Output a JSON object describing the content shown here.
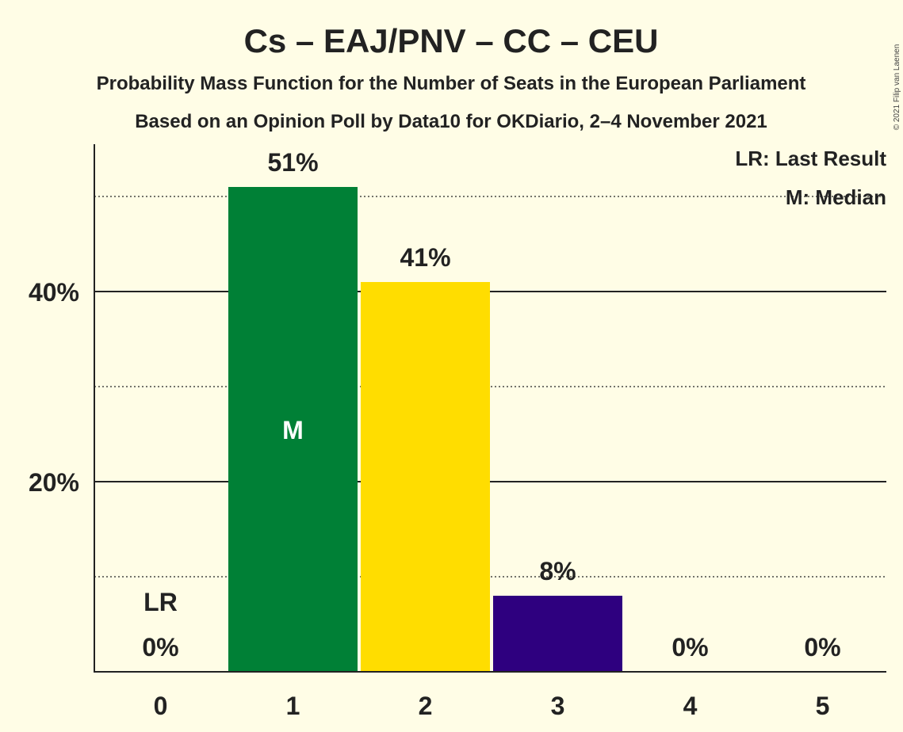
{
  "title": "Cs – EAJ/PNV – CC – CEU",
  "subtitle1": "Probability Mass Function for the Number of Seats in the European Parliament",
  "subtitle2": "Based on an Opinion Poll by Data10 for OKDiario, 2–4 November 2021",
  "copyright": "© 2021 Filip van Laenen",
  "legend": {
    "last_result": "LR: Last Result",
    "median": "M: Median"
  },
  "markers": {
    "last_result_label": "LR",
    "median_label": "M"
  },
  "chart_data": {
    "type": "bar",
    "categories": [
      "0",
      "1",
      "2",
      "3",
      "4",
      "5"
    ],
    "values": [
      0,
      51,
      41,
      8,
      0,
      0
    ],
    "value_labels": [
      "0%",
      "51%",
      "41%",
      "8%",
      "0%",
      "0%"
    ],
    "bar_colors": [
      "#008036",
      "#008036",
      "#FFDD00",
      "#2E007F",
      "#2E007F",
      "#2E007F"
    ],
    "last_result_category": "0",
    "median_category": "1",
    "ylim": [
      0,
      55
    ],
    "yticks": [
      20,
      40
    ],
    "ytick_labels": [
      "20%",
      "40%"
    ],
    "minor_gridlines": [
      10,
      30,
      50
    ],
    "xlabel": "",
    "ylabel": "",
    "legend_position": "top-right"
  }
}
